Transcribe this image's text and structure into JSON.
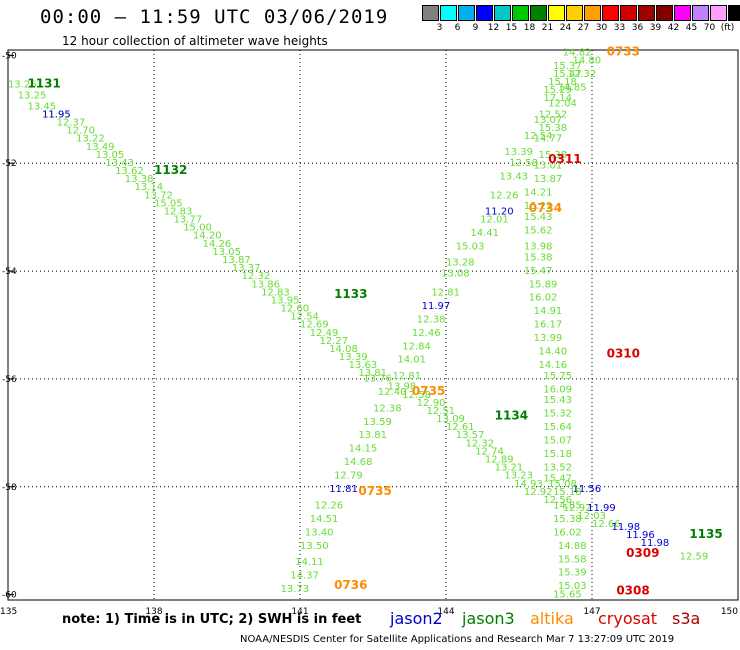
{
  "title": "00:00 – 11:59 UTC 03/06/2019",
  "subtitle": "12 hour collection of altimeter wave heights",
  "colorbar": {
    "colors": [
      "#808080",
      "#00ffff",
      "#00b0f0",
      "#0000ff",
      "#00c8c8",
      "#00c800",
      "#008000",
      "#ffff00",
      "#ffd000",
      "#ffa000",
      "#ff0000",
      "#d00000",
      "#a00000",
      "#800000",
      "#ff00ff",
      "#c080ff",
      "#ffa0ff",
      "#000000"
    ],
    "labels": [
      "3",
      "6",
      "9",
      "12",
      "15",
      "18",
      "21",
      "24",
      "27",
      "30",
      "33",
      "36",
      "39",
      "42",
      "45",
      "70",
      "(ft)"
    ]
  },
  "axes": {
    "lon_min": 135,
    "lon_max": 150,
    "lat_min": -60.1,
    "lat_max": -49.9,
    "lon_ticks": [
      "135",
      "138",
      "141",
      "144",
      "147",
      "150"
    ],
    "lat_ticks": [
      "-50",
      "-52",
      "-54",
      "-56",
      "-58",
      "-60"
    ]
  },
  "colors": {
    "jason2": "#0000cc",
    "jason3": "#008000",
    "altika": "#ff8c00",
    "cryosat": "#dd0000",
    "s3a": "#aa0000",
    "sample": "#66dd33"
  },
  "passes": [
    {
      "label": "1131",
      "color": "jason3",
      "lon": 135.4,
      "lat": -50.6
    },
    {
      "label": "1132",
      "color": "jason3",
      "lon": 138.0,
      "lat": -52.2
    },
    {
      "label": "1133",
      "color": "jason3",
      "lon": 141.7,
      "lat": -54.5
    },
    {
      "label": "1134",
      "color": "jason3",
      "lon": 145.0,
      "lat": -56.75
    },
    {
      "label": "1135",
      "color": "jason3",
      "lon": 149.0,
      "lat": -58.95
    },
    {
      "label": "0733",
      "color": "altika",
      "lon": 147.3,
      "lat": -50.0
    },
    {
      "label": "0734",
      "color": "altika",
      "lon": 145.7,
      "lat": -52.9
    },
    {
      "label": "0735",
      "color": "altika",
      "lon": 143.3,
      "lat": -56.3
    },
    {
      "label": "0735",
      "color": "altika",
      "lon": 142.2,
      "lat": -58.15
    },
    {
      "label": "0736",
      "color": "altika",
      "lon": 141.7,
      "lat": -59.9
    },
    {
      "label": "0311",
      "color": "cryosat",
      "lon": 146.1,
      "lat": -52.0
    },
    {
      "label": "0310",
      "color": "cryosat",
      "lon": 147.3,
      "lat": -55.6
    },
    {
      "label": "0309",
      "color": "cryosat",
      "lon": 147.7,
      "lat": -59.3
    },
    {
      "label": "0308",
      "color": "cryosat",
      "lon": 147.5,
      "lat": -60.0
    }
  ],
  "tracks": [
    {
      "color": "sample",
      "points": [
        [
          "13.26",
          135.0,
          -50.6
        ],
        [
          "13.25",
          135.2,
          -50.8
        ],
        [
          "13.45",
          135.4,
          -51.0
        ],
        [
          "11.95",
          135.7,
          -51.15
        ],
        [
          "12.37",
          136.0,
          -51.3
        ],
        [
          "12.70",
          136.2,
          -51.45
        ],
        [
          "13.22",
          136.4,
          -51.6
        ],
        [
          "13.49",
          136.6,
          -51.75
        ],
        [
          "13.05",
          136.8,
          -51.9
        ],
        [
          "13.43",
          137.0,
          -52.05
        ],
        [
          "13.62",
          137.2,
          -52.2
        ],
        [
          "13.38",
          137.4,
          -52.35
        ],
        [
          "13.14",
          137.6,
          -52.5
        ],
        [
          "13.72",
          137.8,
          -52.65
        ],
        [
          "15.05",
          138.0,
          -52.8
        ],
        [
          "12.83",
          138.2,
          -52.95
        ],
        [
          "13.77",
          138.4,
          -53.1
        ],
        [
          "15.00",
          138.6,
          -53.25
        ],
        [
          "14.20",
          138.8,
          -53.4
        ],
        [
          "14.26",
          139.0,
          -53.55
        ],
        [
          "13.05",
          139.2,
          -53.7
        ],
        [
          "13.87",
          139.4,
          -53.85
        ],
        [
          "13.37",
          139.6,
          -54.0
        ],
        [
          "12.32",
          139.8,
          -54.15
        ],
        [
          "13.86",
          140.0,
          -54.3
        ],
        [
          "12.83",
          140.2,
          -54.45
        ],
        [
          "13.95",
          140.4,
          -54.6
        ],
        [
          "12.60",
          140.6,
          -54.75
        ],
        [
          "12.54",
          140.8,
          -54.9
        ],
        [
          "12.69",
          141.0,
          -55.05
        ],
        [
          "12.49",
          141.2,
          -55.2
        ],
        [
          "12.27",
          141.4,
          -55.35
        ],
        [
          "14.08",
          141.6,
          -55.5
        ],
        [
          "13.39",
          141.8,
          -55.65
        ],
        [
          "13.63",
          142.0,
          -55.8
        ],
        [
          "13.81",
          142.2,
          -55.95
        ],
        [
          "13.76",
          142.3,
          -56.05
        ],
        [
          "13.98",
          142.8,
          -56.2
        ],
        [
          "12.58",
          143.1,
          -56.35
        ],
        [
          "12.90",
          143.4,
          -56.5
        ],
        [
          "12.51",
          143.6,
          -56.65
        ],
        [
          "13.09",
          143.8,
          -56.8
        ],
        [
          "12.61",
          144.0,
          -56.95
        ],
        [
          "13.57",
          144.2,
          -57.1
        ],
        [
          "12.32",
          144.4,
          -57.25
        ],
        [
          "12.74",
          144.6,
          -57.4
        ],
        [
          "12.89",
          144.8,
          -57.55
        ],
        [
          "13.21",
          145.0,
          -57.7
        ],
        [
          "13.23",
          145.2,
          -57.85
        ],
        [
          "14.93",
          145.4,
          -58.0
        ],
        [
          "12.92",
          145.6,
          -58.15
        ],
        [
          "12.56",
          146.0,
          -58.3
        ],
        [
          "12.92",
          146.4,
          -58.45
        ],
        [
          "12.03",
          146.7,
          -58.6
        ],
        [
          "12.66",
          147.0,
          -58.75
        ],
        [
          "12.59",
          148.8,
          -59.35
        ]
      ]
    },
    {
      "color": "jason2",
      "points": [
        [
          "11.95",
          135.7,
          -51.15
        ],
        [
          "11.56",
          146.6,
          -58.1
        ],
        [
          "11.99",
          146.9,
          -58.45
        ],
        [
          "11.98",
          147.4,
          -58.8
        ],
        [
          "11.96",
          147.7,
          -58.95
        ],
        [
          "11.98",
          148.0,
          -59.1
        ]
      ]
    },
    {
      "color": "sample",
      "points": [
        [
          "14.82",
          146.4,
          -50.0
        ],
        [
          "14.80",
          146.6,
          -50.15
        ],
        [
          "15.37",
          146.2,
          -50.25
        ],
        [
          "12.32",
          146.5,
          -50.4
        ],
        [
          "15.47",
          146.2,
          -50.4
        ],
        [
          "15.18",
          146.1,
          -50.55
        ],
        [
          "14.85",
          146.3,
          -50.65
        ],
        [
          "15.29",
          146.0,
          -50.7
        ],
        [
          "17.14",
          146.0,
          -50.85
        ],
        [
          "12.04",
          146.1,
          -50.95
        ],
        [
          "12.52",
          145.9,
          -51.15
        ],
        [
          "13.07",
          145.8,
          -51.25
        ],
        [
          "15.38",
          145.9,
          -51.4
        ],
        [
          "12.54",
          145.6,
          -51.55
        ],
        [
          "14.77",
          145.8,
          -51.6
        ],
        [
          "13.39",
          145.2,
          -51.85
        ],
        [
          "15.38",
          145.9,
          -51.9
        ],
        [
          "12.58",
          145.3,
          -52.05
        ],
        [
          "13.01",
          145.8,
          -52.1
        ],
        [
          "13.43",
          145.1,
          -52.3
        ],
        [
          "13.87",
          145.8,
          -52.35
        ],
        [
          "12.26",
          144.9,
          -52.65
        ],
        [
          "14.21",
          145.6,
          -52.6
        ],
        [
          "15.23",
          145.6,
          -52.85
        ],
        [
          "12.01",
          144.7,
          -53.1
        ],
        [
          "15.43",
          145.6,
          -53.05
        ],
        [
          "14.41",
          144.5,
          -53.35
        ],
        [
          "15.62",
          145.6,
          -53.3
        ],
        [
          "13.98",
          145.6,
          -53.6
        ],
        [
          "15.03",
          144.2,
          -53.6
        ],
        [
          "13.28",
          144.0,
          -53.9
        ],
        [
          "15.38",
          145.6,
          -53.8
        ],
        [
          "13.08",
          143.9,
          -54.1
        ],
        [
          "15.47",
          145.6,
          -54.05
        ],
        [
          "15.89",
          145.7,
          -54.3
        ],
        [
          "12.81",
          143.7,
          -54.45
        ],
        [
          "16.02",
          145.7,
          -54.55
        ],
        [
          "14.91",
          145.8,
          -54.8
        ],
        [
          "12.38",
          143.4,
          -54.95
        ],
        [
          "16.17",
          145.8,
          -55.05
        ],
        [
          "12.46",
          143.3,
          -55.2
        ],
        [
          "13.99",
          145.8,
          -55.3
        ],
        [
          "12.84",
          143.1,
          -55.45
        ],
        [
          "14.40",
          145.9,
          -55.55
        ],
        [
          "14.01",
          143.0,
          -55.7
        ],
        [
          "14.16",
          145.9,
          -55.8
        ],
        [
          "15.75",
          146.0,
          -56.0
        ],
        [
          "12.81",
          142.9,
          -56.0
        ],
        [
          "16.09",
          146.0,
          -56.25
        ],
        [
          "12.40",
          142.6,
          -56.3
        ],
        [
          "15.43",
          146.0,
          -56.45
        ],
        [
          "12.38",
          142.5,
          -56.6
        ],
        [
          "15.32",
          146.0,
          -56.7
        ],
        [
          "13.59",
          142.3,
          -56.85
        ],
        [
          "15.64",
          146.0,
          -56.95
        ],
        [
          "13.81",
          142.2,
          -57.1
        ],
        [
          "15.07",
          146.0,
          -57.2
        ],
        [
          "14.15",
          142.0,
          -57.35
        ],
        [
          "15.18",
          146.0,
          -57.45
        ],
        [
          "14.68",
          141.9,
          -57.6
        ],
        [
          "13.52",
          146.0,
          -57.7
        ],
        [
          "12.79",
          141.7,
          -57.85
        ],
        [
          "15.47",
          146.0,
          -57.9
        ],
        [
          "15.08",
          146.1,
          -58.0
        ],
        [
          "15.18",
          146.2,
          -58.15
        ],
        [
          "12.26",
          141.3,
          -58.4
        ],
        [
          "14.85",
          146.2,
          -58.4
        ],
        [
          "14.51",
          141.2,
          -58.65
        ],
        [
          "15.38",
          146.2,
          -58.65
        ],
        [
          "13.40",
          141.1,
          -58.9
        ],
        [
          "16.02",
          146.2,
          -58.9
        ],
        [
          "13.50",
          141.0,
          -59.15
        ],
        [
          "14.88",
          146.3,
          -59.15
        ],
        [
          "15.58",
          146.3,
          -59.4
        ],
        [
          "14.11",
          140.9,
          -59.45
        ],
        [
          "15.39",
          146.3,
          -59.65
        ],
        [
          "14.37",
          140.8,
          -59.7
        ],
        [
          "15.03",
          146.3,
          -59.9
        ],
        [
          "13.73",
          140.6,
          -59.95
        ],
        [
          "15.65",
          146.2,
          -60.05
        ]
      ]
    },
    {
      "color": "jason2",
      "points": [
        [
          "11.20",
          144.8,
          -52.95
        ],
        [
          "11.97",
          143.5,
          -54.7
        ],
        [
          "11.81",
          141.6,
          -58.1
        ]
      ]
    }
  ],
  "note": "note: 1) Time is in UTC; 2) SWH is in feet",
  "legend": [
    {
      "name": "jason2",
      "color": "jason2"
    },
    {
      "name": "jason3",
      "color": "jason3"
    },
    {
      "name": "altika",
      "color": "altika"
    },
    {
      "name": "cryosat",
      "color": "cryosat"
    },
    {
      "name": "s3a",
      "color": "s3a"
    }
  ],
  "footer": "NOAA/NESDIS Center for Satellite Applications and Research    Mar  7 13:27:09 UTC 2019"
}
